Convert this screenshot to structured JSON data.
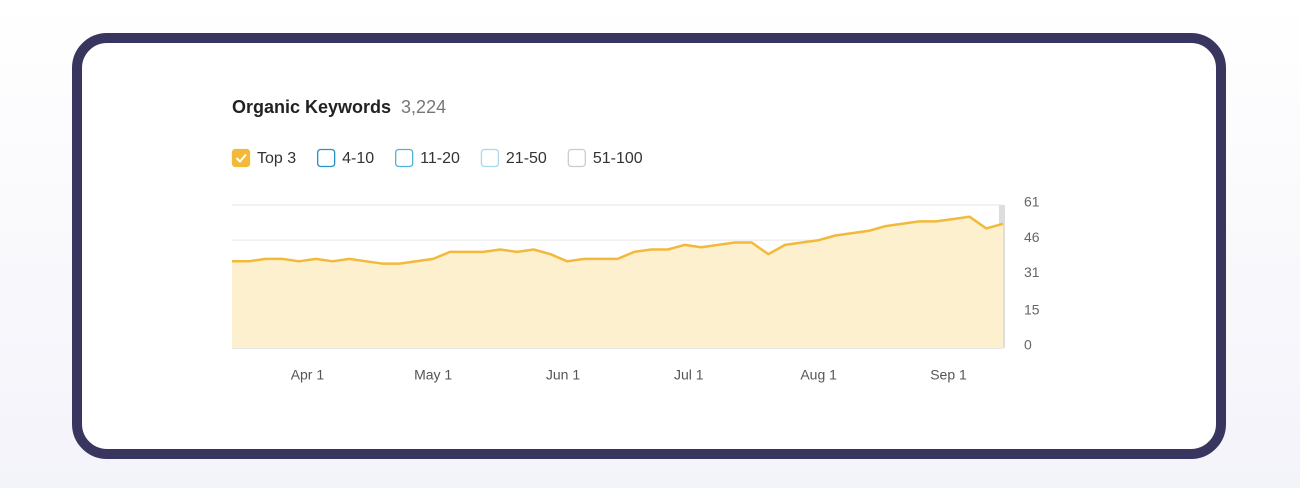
{
  "chart_data": {
    "type": "area",
    "title": "Organic Keywords",
    "total": "3,224",
    "x": [
      -18,
      -14,
      -10,
      -6,
      -2,
      2,
      6,
      10,
      14,
      18,
      22,
      26,
      30,
      34,
      38,
      42,
      46,
      50,
      54,
      58,
      62,
      66,
      70,
      74,
      78,
      82,
      86,
      90,
      94,
      98,
      102,
      106,
      110,
      114,
      118,
      122,
      126,
      130,
      134,
      138,
      142,
      146,
      150,
      154,
      158,
      162,
      166
    ],
    "series": [
      {
        "name": "Top 3",
        "color": "#f2b93b",
        "checked": true,
        "values": [
          37,
          37,
          38,
          38,
          37,
          38,
          37,
          38,
          37,
          36,
          36,
          37,
          38,
          41,
          41,
          41,
          42,
          41,
          42,
          40,
          37,
          38,
          38,
          38,
          41,
          42,
          42,
          44,
          43,
          44,
          45,
          45,
          40,
          44,
          45,
          46,
          48,
          49,
          50,
          52,
          53,
          54,
          54,
          55,
          56,
          51,
          53
        ]
      },
      {
        "name": "4-10",
        "color": "#2a8fc4",
        "checked": false
      },
      {
        "name": "11-20",
        "color": "#4fb3d9",
        "checked": false
      },
      {
        "name": "21-50",
        "color": "#a6d9ea",
        "checked": false
      },
      {
        "name": "51-100",
        "color": "#cccccc",
        "checked": false
      }
    ],
    "xlim": [
      -18,
      166
    ],
    "xticks": [
      {
        "value": 0,
        "label": "Apr 1"
      },
      {
        "value": 30,
        "label": "May 1"
      },
      {
        "value": 61,
        "label": "Jun 1"
      },
      {
        "value": 91,
        "label": "Jul 1"
      },
      {
        "value": 122,
        "label": "Aug 1"
      },
      {
        "value": 153,
        "label": "Sep 1"
      }
    ],
    "ylim": [
      0,
      61
    ],
    "yticks": [
      0,
      15,
      31,
      46,
      61
    ],
    "grid": true
  }
}
